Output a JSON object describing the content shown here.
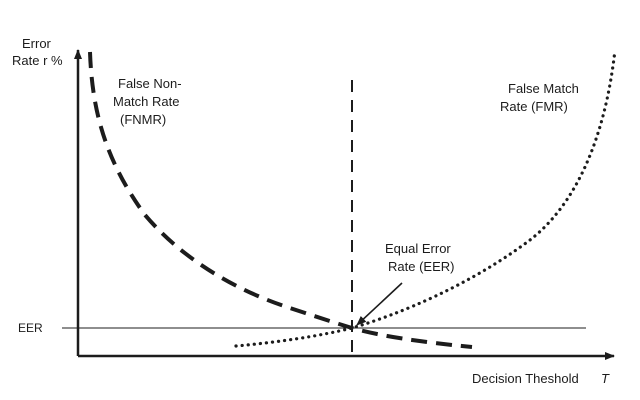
{
  "y_axis_label": {
    "line1": "Error",
    "line2": "Rate r %"
  },
  "x_axis_label": {
    "text": "Decision Theshold",
    "symbol": "T"
  },
  "eer_tick_label": "EER",
  "fnmr_label": {
    "line1": "False Non-",
    "line2": "Match Rate",
    "line3": "(FNMR)"
  },
  "fmr_label": {
    "line1": "False Match",
    "line2": "Rate (FMR)"
  },
  "eer_callout": {
    "line1": "Equal Error",
    "line2": "Rate (EER)"
  },
  "styles": {
    "ink": "#1c1c1c",
    "background": "#ffffff"
  }
}
